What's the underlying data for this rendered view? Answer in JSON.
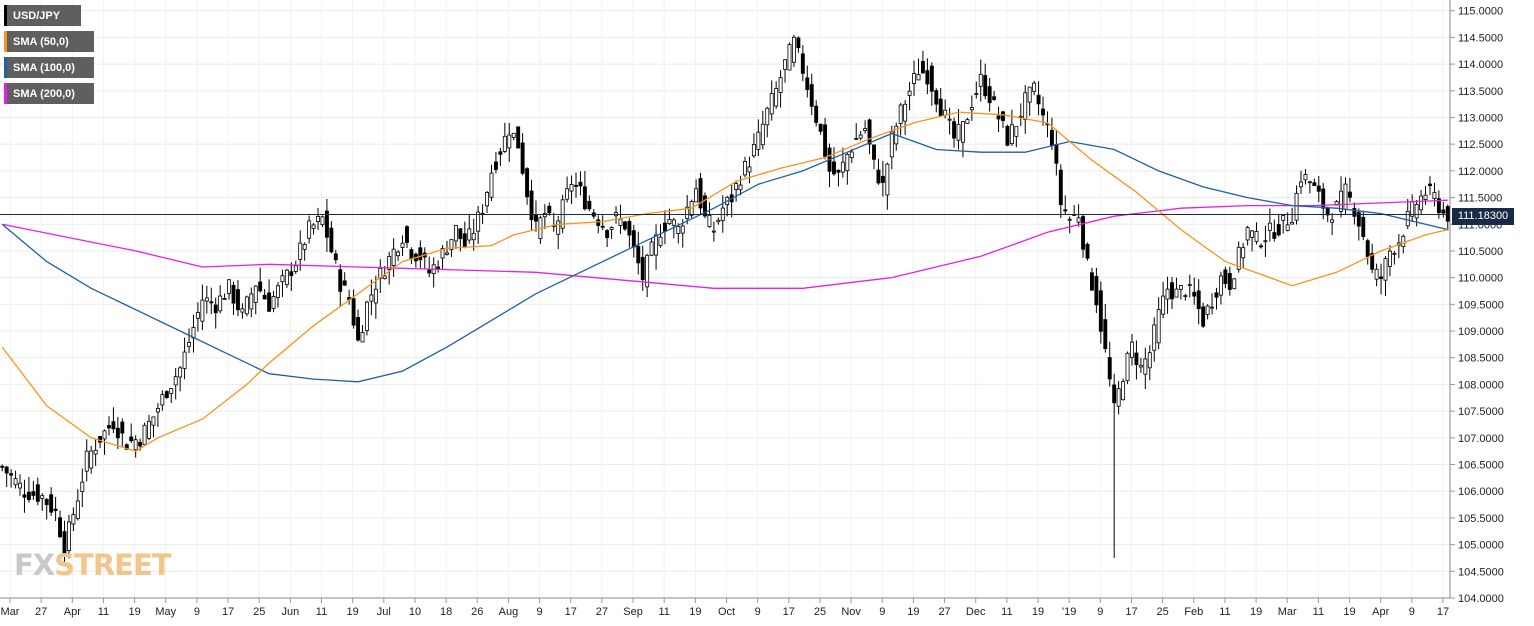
{
  "chart_data": {
    "type": "candlestick",
    "title": "",
    "symbol": "USD/JPY",
    "current_price_label": "111.18300",
    "current_price": 111.183,
    "ylim": [
      104.0,
      115.2
    ],
    "y_ticks": [
      "115.0000",
      "114.5000",
      "114.0000",
      "113.5000",
      "113.0000",
      "112.5000",
      "112.0000",
      "111.5000",
      "111.0000",
      "110.5000",
      "110.0000",
      "109.5000",
      "109.0000",
      "108.5000",
      "108.0000",
      "107.5000",
      "107.0000",
      "106.5000",
      "106.0000",
      "105.5000",
      "105.0000",
      "104.5000",
      "104.0000"
    ],
    "x_ticks": [
      "Mar",
      "27",
      "Apr",
      "11",
      "19",
      "May",
      "9",
      "17",
      "25",
      "Jun",
      "11",
      "19",
      "Jul",
      "10",
      "18",
      "26",
      "Aug",
      "9",
      "17",
      "27",
      "Sep",
      "11",
      "19",
      "Oct",
      "9",
      "17",
      "25",
      "Nov",
      "9",
      "19",
      "27",
      "Dec",
      "11",
      "19",
      "'19",
      "9",
      "17",
      "25",
      "Feb",
      "11",
      "19",
      "Mar",
      "11",
      "19",
      "Apr",
      "9",
      "17"
    ],
    "legend": [
      {
        "label": "USD/JPY",
        "color": "#000000"
      },
      {
        "label": "SMA (50,0)",
        "color": "#f7941d"
      },
      {
        "label": "SMA (100,0)",
        "color": "#1f5fa8"
      },
      {
        "label": "SMA (200,0)",
        "color": "#e81ee8"
      }
    ],
    "close_keypoints": [
      [
        0,
        106.45
      ],
      [
        5,
        106.0
      ],
      [
        9,
        105.9
      ],
      [
        12,
        105.6
      ],
      [
        14,
        104.95
      ],
      [
        17,
        105.9
      ],
      [
        19,
        106.6
      ],
      [
        22,
        107.0
      ],
      [
        25,
        107.3
      ],
      [
        28,
        106.9
      ],
      [
        31,
        107.0
      ],
      [
        34,
        107.4
      ],
      [
        37,
        107.9
      ],
      [
        40,
        108.3
      ],
      [
        42,
        108.8
      ],
      [
        45,
        109.6
      ],
      [
        48,
        109.5
      ],
      [
        51,
        109.8
      ],
      [
        54,
        109.3
      ],
      [
        57,
        109.9
      ],
      [
        60,
        109.5
      ],
      [
        63,
        109.9
      ],
      [
        66,
        110.3
      ],
      [
        69,
        110.9
      ],
      [
        72,
        111.1
      ],
      [
        74,
        110.5
      ],
      [
        76,
        109.9
      ],
      [
        78,
        109.6
      ],
      [
        80,
        108.8
      ],
      [
        82,
        109.5
      ],
      [
        84,
        109.9
      ],
      [
        86,
        110.2
      ],
      [
        88,
        110.5
      ],
      [
        90,
        110.8
      ],
      [
        92,
        110.5
      ],
      [
        94,
        110.4
      ],
      [
        96,
        110.1
      ],
      [
        98,
        110.3
      ],
      [
        100,
        110.6
      ],
      [
        102,
        110.9
      ],
      [
        104,
        110.6
      ],
      [
        106,
        110.9
      ],
      [
        108,
        111.3
      ],
      [
        110,
        112.0
      ],
      [
        112,
        112.4
      ],
      [
        114,
        112.8
      ],
      [
        116,
        112.5
      ],
      [
        118,
        111.6
      ],
      [
        120,
        110.9
      ],
      [
        122,
        111.2
      ],
      [
        124,
        110.9
      ],
      [
        126,
        111.3
      ],
      [
        128,
        111.8
      ],
      [
        130,
        111.6
      ],
      [
        132,
        111.3
      ],
      [
        134,
        111.1
      ],
      [
        136,
        110.9
      ],
      [
        138,
        111.1
      ],
      [
        140,
        111.0
      ],
      [
        142,
        110.5
      ],
      [
        144,
        110.0
      ],
      [
        146,
        110.5
      ],
      [
        148,
        110.9
      ],
      [
        150,
        111.1
      ],
      [
        152,
        110.9
      ],
      [
        154,
        111.3
      ],
      [
        156,
        111.7
      ],
      [
        158,
        111.1
      ],
      [
        160,
        110.9
      ],
      [
        162,
        111.3
      ],
      [
        164,
        111.5
      ],
      [
        166,
        111.9
      ],
      [
        168,
        112.2
      ],
      [
        170,
        112.6
      ],
      [
        172,
        113.1
      ],
      [
        174,
        113.5
      ],
      [
        176,
        114.0
      ],
      [
        178,
        114.4
      ],
      [
        180,
        113.9
      ],
      [
        182,
        113.3
      ],
      [
        184,
        112.7
      ],
      [
        186,
        112.0
      ],
      [
        188,
        111.9
      ],
      [
        190,
        112.3
      ],
      [
        192,
        112.6
      ],
      [
        194,
        112.8
      ],
      [
        196,
        112.1
      ],
      [
        198,
        111.7
      ],
      [
        200,
        112.6
      ],
      [
        202,
        113.1
      ],
      [
        204,
        113.5
      ],
      [
        206,
        113.9
      ],
      [
        208,
        113.8
      ],
      [
        210,
        113.4
      ],
      [
        212,
        113.0
      ],
      [
        214,
        112.6
      ],
      [
        216,
        112.8
      ],
      [
        218,
        113.3
      ],
      [
        220,
        113.7
      ],
      [
        222,
        113.4
      ],
      [
        224,
        113.0
      ],
      [
        226,
        112.6
      ],
      [
        228,
        112.9
      ],
      [
        230,
        113.3
      ],
      [
        232,
        113.5
      ],
      [
        234,
        113.0
      ],
      [
        236,
        112.6
      ],
      [
        238,
        111.4
      ],
      [
        240,
        111.1
      ],
      [
        242,
        111.2
      ],
      [
        244,
        110.2
      ],
      [
        246,
        109.6
      ],
      [
        248,
        108.6
      ],
      [
        250,
        107.5
      ],
      [
        252,
        108.2
      ],
      [
        254,
        108.7
      ],
      [
        256,
        108.3
      ],
      [
        258,
        108.6
      ],
      [
        260,
        109.3
      ],
      [
        262,
        109.8
      ],
      [
        264,
        109.7
      ],
      [
        266,
        109.8
      ],
      [
        268,
        109.6
      ],
      [
        270,
        109.2
      ],
      [
        272,
        109.6
      ],
      [
        274,
        110.0
      ],
      [
        276,
        109.9
      ],
      [
        278,
        110.4
      ],
      [
        280,
        110.9
      ],
      [
        282,
        110.7
      ],
      [
        284,
        110.8
      ],
      [
        286,
        110.9
      ],
      [
        288,
        111.0
      ],
      [
        290,
        111.2
      ],
      [
        292,
        111.9
      ],
      [
        294,
        111.8
      ],
      [
        296,
        111.5
      ],
      [
        298,
        111.2
      ],
      [
        300,
        111.3
      ],
      [
        302,
        111.6
      ],
      [
        304,
        111.3
      ],
      [
        306,
        110.8
      ],
      [
        308,
        110.1
      ],
      [
        310,
        110.0
      ],
      [
        312,
        110.5
      ],
      [
        314,
        110.7
      ],
      [
        316,
        111.1
      ],
      [
        318,
        111.4
      ],
      [
        320,
        111.6
      ],
      [
        322,
        111.5
      ],
      [
        324,
        111.2
      ],
      [
        325,
        111.18
      ]
    ],
    "sma50_keypoints": [
      [
        0,
        108.7
      ],
      [
        10,
        107.6
      ],
      [
        20,
        107.0
      ],
      [
        30,
        106.75
      ],
      [
        35,
        107.0
      ],
      [
        45,
        107.35
      ],
      [
        55,
        108.0
      ],
      [
        60,
        108.4
      ],
      [
        70,
        109.1
      ],
      [
        80,
        109.7
      ],
      [
        90,
        110.3
      ],
      [
        100,
        110.55
      ],
      [
        110,
        110.6
      ],
      [
        115,
        110.8
      ],
      [
        125,
        111.0
      ],
      [
        135,
        111.05
      ],
      [
        145,
        111.2
      ],
      [
        155,
        111.3
      ],
      [
        165,
        111.8
      ],
      [
        175,
        112.05
      ],
      [
        185,
        112.25
      ],
      [
        195,
        112.6
      ],
      [
        205,
        112.9
      ],
      [
        215,
        113.1
      ],
      [
        225,
        113.05
      ],
      [
        235,
        112.9
      ],
      [
        245,
        112.2
      ],
      [
        255,
        111.6
      ],
      [
        265,
        110.9
      ],
      [
        275,
        110.3
      ],
      [
        285,
        110.0
      ],
      [
        290,
        109.85
      ],
      [
        300,
        110.1
      ],
      [
        310,
        110.5
      ],
      [
        320,
        110.8
      ],
      [
        325,
        110.9
      ]
    ],
    "sma100_keypoints": [
      [
        0,
        111.0
      ],
      [
        10,
        110.3
      ],
      [
        20,
        109.8
      ],
      [
        30,
        109.4
      ],
      [
        40,
        109.0
      ],
      [
        50,
        108.6
      ],
      [
        60,
        108.2
      ],
      [
        70,
        108.1
      ],
      [
        80,
        108.05
      ],
      [
        90,
        108.25
      ],
      [
        100,
        108.7
      ],
      [
        110,
        109.2
      ],
      [
        120,
        109.7
      ],
      [
        130,
        110.1
      ],
      [
        140,
        110.5
      ],
      [
        150,
        110.9
      ],
      [
        160,
        111.3
      ],
      [
        170,
        111.75
      ],
      [
        180,
        112.0
      ],
      [
        190,
        112.35
      ],
      [
        200,
        112.7
      ],
      [
        210,
        112.4
      ],
      [
        220,
        112.35
      ],
      [
        230,
        112.35
      ],
      [
        240,
        112.55
      ],
      [
        250,
        112.4
      ],
      [
        260,
        112.0
      ],
      [
        270,
        111.7
      ],
      [
        280,
        111.5
      ],
      [
        290,
        111.35
      ],
      [
        300,
        111.3
      ],
      [
        310,
        111.2
      ],
      [
        320,
        111.0
      ],
      [
        325,
        110.9
      ]
    ],
    "sma200_keypoints": [
      [
        0,
        111.0
      ],
      [
        15,
        110.75
      ],
      [
        30,
        110.5
      ],
      [
        45,
        110.2
      ],
      [
        60,
        110.25
      ],
      [
        80,
        110.2
      ],
      [
        100,
        110.15
      ],
      [
        120,
        110.1
      ],
      [
        140,
        109.95
      ],
      [
        160,
        109.8
      ],
      [
        180,
        109.8
      ],
      [
        200,
        110.0
      ],
      [
        220,
        110.4
      ],
      [
        235,
        110.85
      ],
      [
        250,
        111.15
      ],
      [
        265,
        111.3
      ],
      [
        280,
        111.35
      ],
      [
        295,
        111.35
      ],
      [
        310,
        111.4
      ],
      [
        325,
        111.45
      ]
    ],
    "spikes": [
      {
        "bar": 250,
        "low": 104.75
      },
      {
        "bar": 14,
        "low": 104.6
      },
      {
        "bar": 178,
        "high": 114.55
      }
    ]
  },
  "watermark": {
    "part1": "FX",
    "part2": "STREET"
  }
}
